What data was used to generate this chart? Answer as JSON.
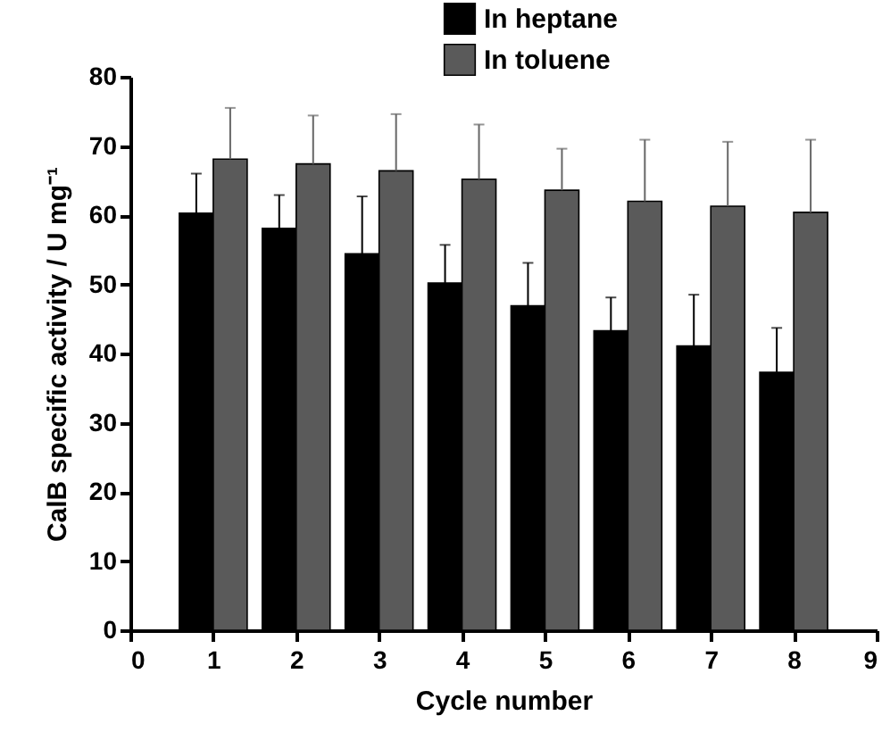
{
  "chart_data": {
    "type": "bar",
    "xlabel": "Cycle number",
    "ylabel": "CalB specific activity / U mg⁻¹",
    "x": [
      1,
      2,
      3,
      4,
      5,
      6,
      7,
      8
    ],
    "series": [
      {
        "name": "In heptane",
        "color": "#000000",
        "values": [
          60.3,
          58.1,
          54.4,
          50.2,
          46.9,
          43.3,
          41.1,
          37.3
        ],
        "errors": [
          [
            60.3,
            66.0
          ],
          [
            58.1,
            62.9
          ],
          [
            54.4,
            62.7
          ],
          [
            50.2,
            55.7
          ],
          [
            46.9,
            53.1
          ],
          [
            43.3,
            48.1
          ],
          [
            41.1,
            48.5
          ],
          [
            37.3,
            43.7
          ]
        ]
      },
      {
        "name": "In toluene",
        "color": "#5a5a5a",
        "values": [
          68.1,
          67.4,
          66.4,
          65.2,
          63.6,
          62.0,
          61.3,
          60.4
        ],
        "errors": [
          [
            68.1,
            75.5
          ],
          [
            67.4,
            74.4
          ],
          [
            66.4,
            74.6
          ],
          [
            65.2,
            73.1
          ],
          [
            63.6,
            69.6
          ],
          [
            62.0,
            70.9
          ],
          [
            61.3,
            70.6
          ],
          [
            60.4,
            70.9
          ]
        ]
      }
    ],
    "xlim": [
      0,
      9
    ],
    "xticks": [
      0,
      1,
      2,
      3,
      4,
      5,
      6,
      7,
      8,
      9
    ],
    "ylim": [
      0,
      80
    ],
    "yticks": [
      0,
      10,
      20,
      30,
      40,
      50,
      60,
      70,
      80
    ],
    "legend": "top right"
  }
}
